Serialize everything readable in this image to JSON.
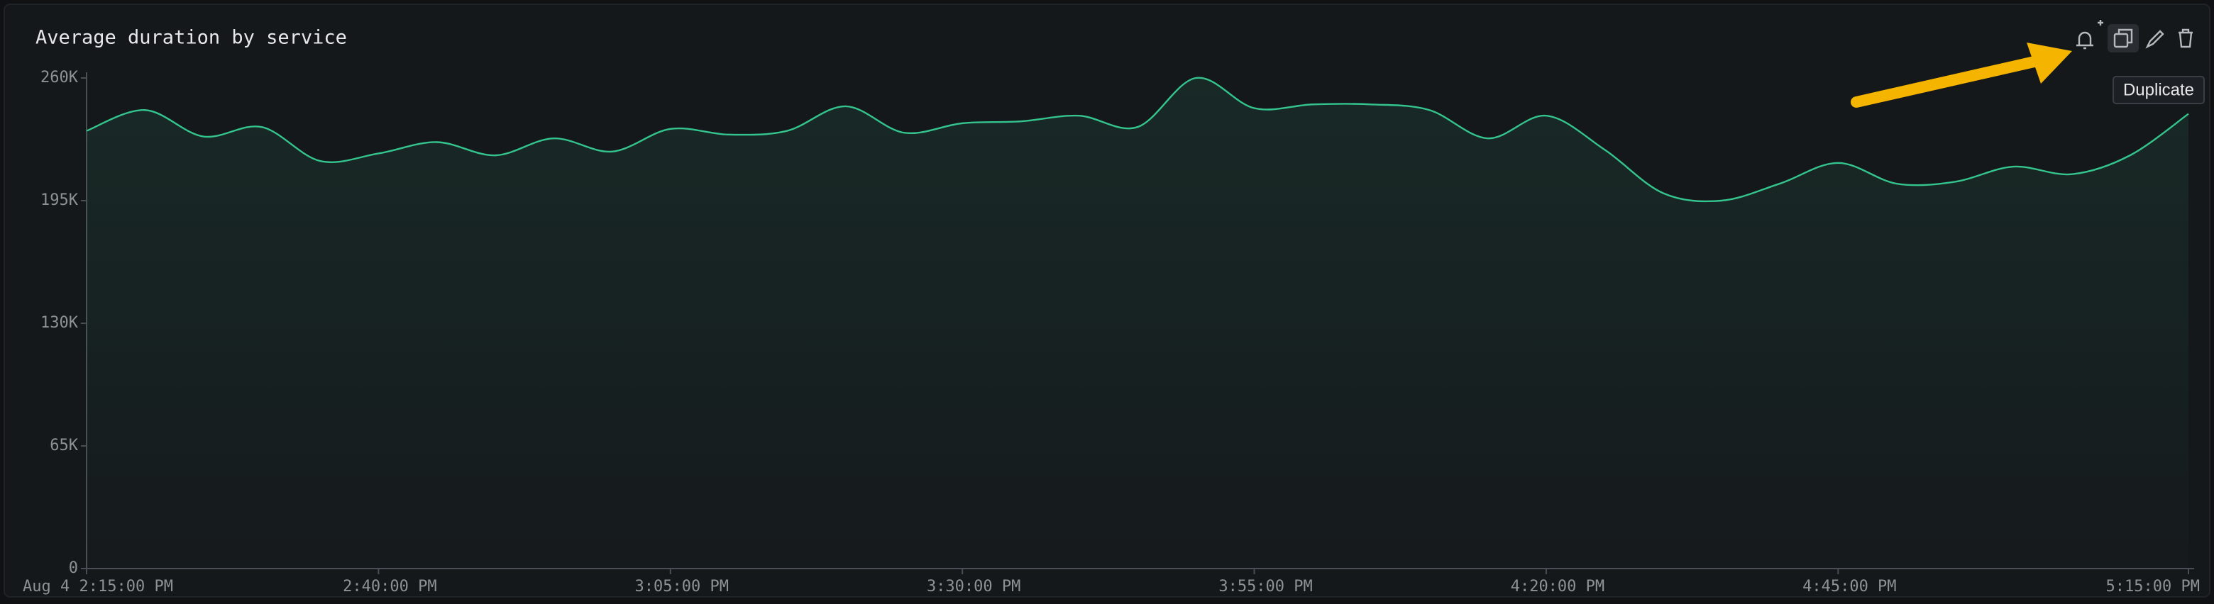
{
  "chart_data": {
    "type": "line",
    "title": "Average duration by service",
    "x": [
      "2:15:00 PM",
      "2:20:00 PM",
      "2:25:00 PM",
      "2:30:00 PM",
      "2:35:00 PM",
      "2:40:00 PM",
      "2:45:00 PM",
      "2:50:00 PM",
      "2:55:00 PM",
      "3:00:00 PM",
      "3:05:00 PM",
      "3:10:00 PM",
      "3:15:00 PM",
      "3:20:00 PM",
      "3:25:00 PM",
      "3:30:00 PM",
      "3:35:00 PM",
      "3:40:00 PM",
      "3:45:00 PM",
      "3:50:00 PM",
      "3:55:00 PM",
      "4:00:00 PM",
      "4:05:00 PM",
      "4:10:00 PM",
      "4:15:00 PM",
      "4:20:00 PM",
      "4:25:00 PM",
      "4:30:00 PM",
      "4:35:00 PM",
      "4:40:00 PM",
      "4:45:00 PM",
      "4:50:00 PM",
      "4:55:00 PM",
      "5:00:00 PM",
      "5:05:00 PM",
      "5:10:00 PM",
      "5:15:00 PM"
    ],
    "series": [
      {
        "color": "#34c48e",
        "values": [
          232000,
          243000,
          229000,
          234000,
          216000,
          220000,
          226000,
          219000,
          228000,
          221000,
          233000,
          230000,
          232000,
          245000,
          231000,
          236000,
          237000,
          240000,
          234000,
          260000,
          244000,
          246000,
          246000,
          243000,
          228000,
          240000,
          222000,
          199000,
          195000,
          204000,
          215000,
          204000,
          205000,
          213000,
          209000,
          219000,
          241000
        ]
      }
    ],
    "xlim": [
      "2:15:00 PM",
      "5:15:00 PM"
    ],
    "xticks": [
      {
        "value": "2:15:00 PM",
        "label": "Aug 4 2:15:00 PM"
      },
      "2:40:00 PM",
      "3:05:00 PM",
      "3:30:00 PM",
      "3:55:00 PM",
      "4:20:00 PM",
      "4:45:00 PM",
      "5:15:00 PM"
    ],
    "ylim": [
      0,
      260000
    ],
    "yticks": [
      0,
      {
        "value": 65000,
        "label": "65K"
      },
      {
        "value": 130000,
        "label": "130K"
      },
      {
        "value": 195000,
        "label": "195K"
      },
      {
        "value": 260000,
        "label": "260K"
      }
    ]
  },
  "tooltip": "Duplicate"
}
